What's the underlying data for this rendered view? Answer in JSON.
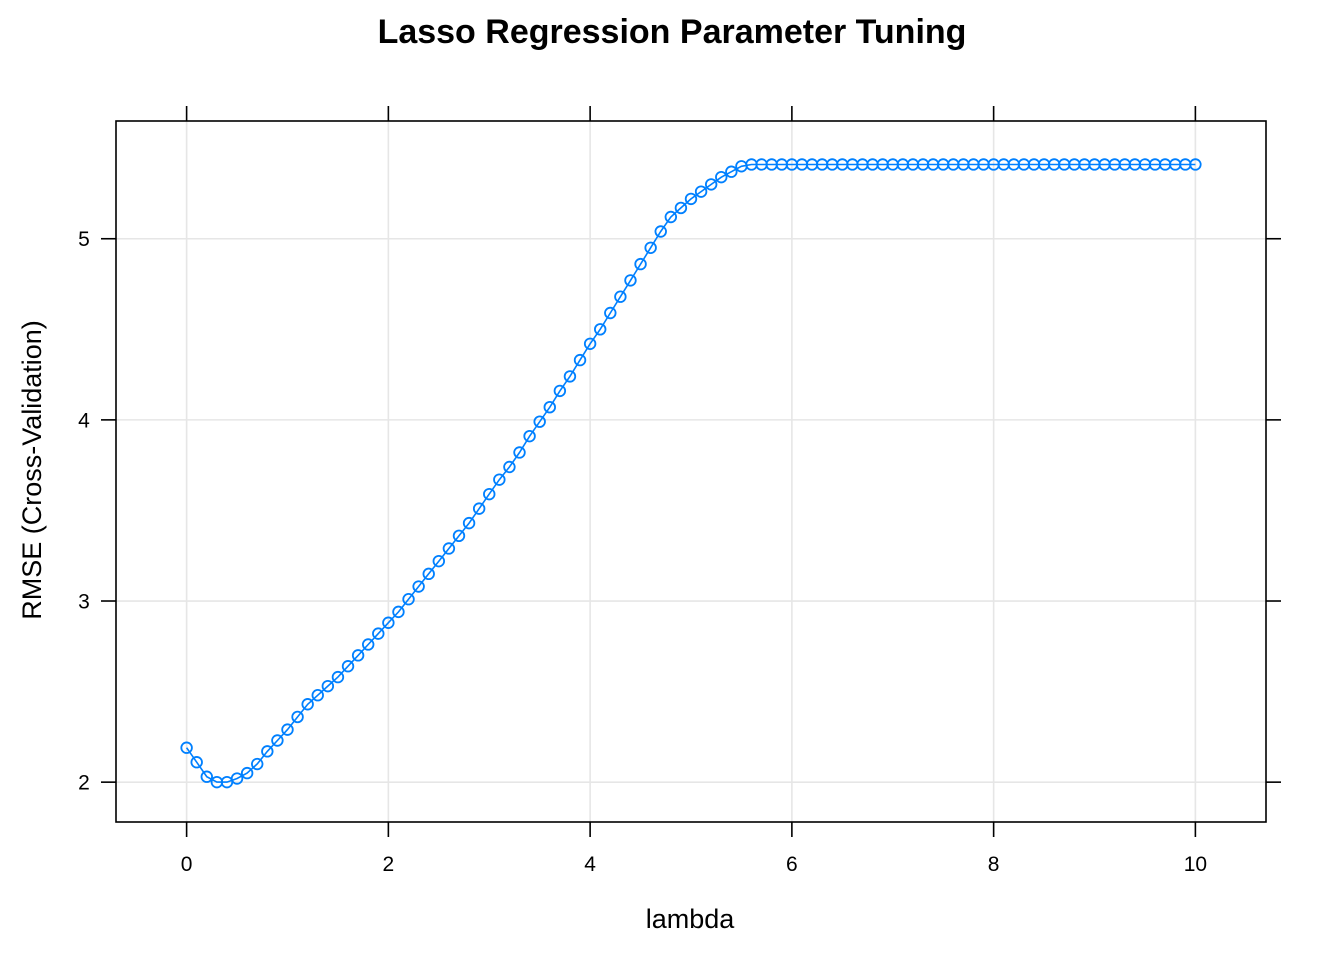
{
  "chart_data": {
    "type": "line",
    "title": "Lasso Regression Parameter Tuning",
    "xlabel": "lambda",
    "ylabel": "RMSE (Cross-Validation)",
    "xlim": [
      -0.7,
      10.7
    ],
    "ylim": [
      1.78,
      5.65
    ],
    "x_ticks": [
      0,
      2,
      4,
      6,
      8,
      10
    ],
    "y_ticks": [
      2,
      3,
      4,
      5
    ],
    "grid": true,
    "marker": "open-circle",
    "series_color": "#0080ff",
    "grid_color": "#e6e6e6",
    "series": [
      {
        "x": [
          0,
          0.1,
          0.2,
          0.3,
          0.4,
          0.5,
          0.6,
          0.7,
          0.8,
          0.9,
          1.0,
          1.1,
          1.2,
          1.3,
          1.4,
          1.5,
          1.6,
          1.7,
          1.8,
          1.9,
          2.0,
          2.1,
          2.2,
          2.3,
          2.4,
          2.5,
          2.6,
          2.7,
          2.8,
          2.9,
          3.0,
          3.1,
          3.2,
          3.3,
          3.4,
          3.5,
          3.6,
          3.7,
          3.8,
          3.9,
          4.0,
          4.1,
          4.2,
          4.3,
          4.4,
          4.5,
          4.6,
          4.7,
          4.8,
          4.9,
          5.0,
          5.1,
          5.2,
          5.3,
          5.4,
          5.5,
          5.6,
          5.7,
          5.8,
          5.9,
          6.0,
          6.1,
          6.2,
          6.3,
          6.4,
          6.5,
          6.6,
          6.7,
          6.8,
          6.9,
          7.0,
          7.1,
          7.2,
          7.3,
          7.4,
          7.5,
          7.6,
          7.7,
          7.8,
          7.9,
          8.0,
          8.1,
          8.2,
          8.3,
          8.4,
          8.5,
          8.6,
          8.7,
          8.8,
          8.9,
          9.0,
          9.1,
          9.2,
          9.3,
          9.4,
          9.5,
          9.6,
          9.7,
          9.8,
          9.9,
          10.0
        ],
        "y": [
          2.19,
          2.11,
          2.03,
          2.0,
          2.0,
          2.02,
          2.05,
          2.1,
          2.17,
          2.23,
          2.29,
          2.36,
          2.43,
          2.48,
          2.53,
          2.58,
          2.64,
          2.7,
          2.76,
          2.82,
          2.88,
          2.94,
          3.01,
          3.08,
          3.15,
          3.22,
          3.29,
          3.36,
          3.43,
          3.51,
          3.59,
          3.67,
          3.74,
          3.82,
          3.91,
          3.99,
          4.07,
          4.16,
          4.24,
          4.33,
          4.42,
          4.5,
          4.59,
          4.68,
          4.77,
          4.86,
          4.95,
          5.04,
          5.12,
          5.17,
          5.22,
          5.26,
          5.3,
          5.34,
          5.37,
          5.4,
          5.41,
          5.41,
          5.41,
          5.41,
          5.41,
          5.41,
          5.41,
          5.41,
          5.41,
          5.41,
          5.41,
          5.41,
          5.41,
          5.41,
          5.41,
          5.41,
          5.41,
          5.41,
          5.41,
          5.41,
          5.41,
          5.41,
          5.41,
          5.41,
          5.41,
          5.41,
          5.41,
          5.41,
          5.41,
          5.41,
          5.41,
          5.41,
          5.41,
          5.41,
          5.41,
          5.41,
          5.41,
          5.41,
          5.41,
          5.41,
          5.41,
          5.41,
          5.41,
          5.41,
          5.41
        ]
      }
    ]
  }
}
